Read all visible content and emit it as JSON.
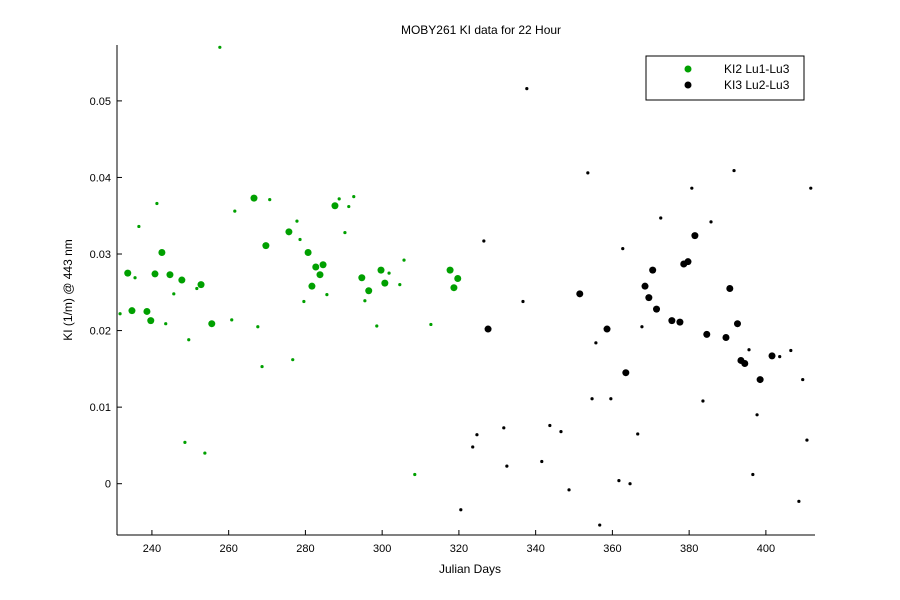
{
  "chart_data": {
    "type": "scatter",
    "title": "MOBY261   KI data for 22 Hour",
    "x_label": "Julian Days",
    "y_label": "KI (1/m) @ 443 nm",
    "xlim": [
      230.9,
      412.8
    ],
    "ylim": [
      -0.0067,
      0.0573
    ],
    "xticks": [
      240,
      260,
      280,
      300,
      320,
      340,
      360,
      380,
      400
    ],
    "yticks": [
      0,
      0.01,
      0.02,
      0.03,
      0.04,
      0.05
    ],
    "legend": "northeast",
    "series": [
      {
        "name": "KI2 Lu1-Lu3",
        "color": "#00a000",
        "marker": "o",
        "x": [
          233.7,
          234.8,
          238.7,
          239.7,
          240.8,
          242.6,
          244.7,
          247.8,
          252.8,
          255.6,
          266.6,
          269.7,
          275.7,
          280.7,
          281.7,
          282.7,
          283.8,
          284.6,
          287.7,
          294.7,
          296.5,
          299.7,
          300.7,
          317.7,
          318.7,
          319.7
        ],
        "values": [
          0.0275,
          0.0226,
          0.0225,
          0.0213,
          0.0274,
          0.0302,
          0.0273,
          0.0266,
          0.026,
          0.0209,
          0.0373,
          0.0311,
          0.0329,
          0.0302,
          0.0258,
          0.0283,
          0.0273,
          0.0286,
          0.0363,
          0.0269,
          0.0252,
          0.0279,
          0.0262,
          0.0279,
          0.0256,
          0.0268
        ]
      },
      {
        "name": "KI3 Lu2-Lu3",
        "color": "#000000",
        "marker": "o",
        "x": [
          327.6,
          351.5,
          358.6,
          363.5,
          368.5,
          369.5,
          370.5,
          371.5,
          375.5,
          377.6,
          378.6,
          379.7,
          381.5,
          384.6,
          389.6,
          390.6,
          392.6,
          393.5,
          394.5,
          398.5,
          401.6
        ],
        "values": [
          0.0202,
          0.0248,
          0.0202,
          0.0145,
          0.0258,
          0.0243,
          0.0279,
          0.0228,
          0.0213,
          0.0211,
          0.0287,
          0.029,
          0.0324,
          0.0195,
          0.0191,
          0.0255,
          0.0209,
          0.0161,
          0.0157,
          0.0136,
          0.0167
        ]
      },
      {
        "color": "#00a000",
        "marker": ".",
        "x": [
          231.7,
          235.6,
          236.6,
          241.3,
          243.6,
          245.7,
          249.6,
          248.6,
          251.7,
          253.8,
          257.7,
          260.8,
          261.6,
          267.6,
          268.7,
          270.7,
          276.7,
          277.8,
          278.6,
          279.6,
          285.6,
          288.8,
          291.3,
          292.6,
          290.3,
          298.6,
          295.5,
          301.8,
          304.6,
          305.7,
          308.5,
          312.7
        ],
        "values": [
          0.0222,
          0.0269,
          0.0336,
          0.0366,
          0.0209,
          0.0248,
          0.0188,
          0.0054,
          0.0255,
          0.004,
          0.057,
          0.0214,
          0.0356,
          0.0205,
          0.0153,
          0.0371,
          0.0162,
          0.0343,
          0.0319,
          0.0238,
          0.0247,
          0.0372,
          0.0362,
          0.0375,
          0.0328,
          0.0206,
          0.0239,
          0.0275,
          0.026,
          0.0292,
          0.0012,
          0.0208
        ]
      },
      {
        "color": "#000000",
        "marker": ".",
        "x": [
          320.5,
          323.6,
          324.7,
          326.5,
          331.7,
          332.5,
          336.7,
          337.7,
          341.6,
          343.7,
          346.6,
          348.7,
          353.6,
          354.7,
          355.7,
          356.7,
          359.6,
          361.7,
          362.7,
          364.6,
          366.6,
          367.7,
          372.6,
          380.7,
          383.6,
          385.7,
          391.7,
          395.6,
          396.6,
          397.7,
          403.6,
          406.5,
          408.6,
          409.6,
          410.7,
          411.7
        ],
        "values": [
          -0.0034,
          0.0048,
          0.0064,
          0.0317,
          0.0073,
          0.0023,
          0.0238,
          0.0516,
          0.0029,
          0.0076,
          0.0068,
          -0.0008,
          0.0406,
          0.0111,
          0.0184,
          -0.0054,
          0.0111,
          0.0004,
          0.0307,
          0,
          0.0065,
          0.0205,
          0.0347,
          0.0386,
          0.0108,
          0.0342,
          0.0409,
          0.0175,
          0.0012,
          0.009,
          0.0166,
          0.0174,
          -0.0023,
          0.0136,
          0.0057,
          0.0386
        ]
      }
    ]
  }
}
